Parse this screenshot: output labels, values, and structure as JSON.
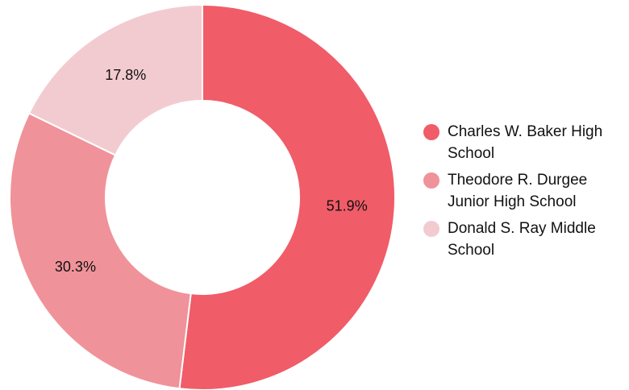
{
  "chart_data": {
    "type": "pie",
    "donut": true,
    "categories": [
      "Charles W. Baker High School",
      "Theodore R. Durgee Junior High School",
      "Donald S. Ray Middle School"
    ],
    "values": [
      51.9,
      30.3,
      17.8
    ],
    "labels": [
      "51.9%",
      "30.3%",
      "17.8%"
    ],
    "colors": [
      "#f05c68",
      "#f09299",
      "#f2cbd0"
    ],
    "legend_position": "right"
  }
}
